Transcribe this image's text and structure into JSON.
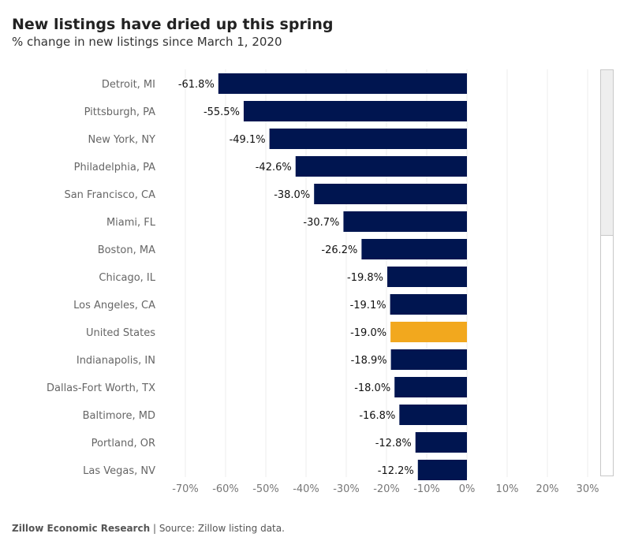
{
  "header": {
    "title": "New listings have dried up this spring",
    "subtitle": "% change in new listings since March 1, 2020"
  },
  "footer": {
    "brand": "Zillow Economic Research",
    "separator": " | ",
    "source": "Source: Zillow listing data."
  },
  "colors": {
    "bar": "#001550",
    "highlight": "#f2a81e",
    "grid": "#eeeeee"
  },
  "chart_data": {
    "type": "bar",
    "orientation": "horizontal",
    "title": "New listings have dried up this spring",
    "subtitle": "% change in new listings since March 1, 2020",
    "categories": [
      "Detroit, MI",
      "Pittsburgh, PA",
      "New York, NY",
      "Philadelphia, PA",
      "San Francisco, CA",
      "Miami, FL",
      "Boston, MA",
      "Chicago, IL",
      "Los Angeles, CA",
      "United States",
      "Indianapolis, IN",
      "Dallas-Fort Worth, TX",
      "Baltimore, MD",
      "Portland, OR",
      "Las Vegas, NV"
    ],
    "values": [
      -61.8,
      -55.5,
      -49.1,
      -42.6,
      -38.0,
      -30.7,
      -26.2,
      -19.8,
      -19.1,
      -19.0,
      -18.9,
      -18.0,
      -16.8,
      -12.8,
      -12.2
    ],
    "value_labels": [
      "-61.8%",
      "-55.5%",
      "-49.1%",
      "-42.6%",
      "-38.0%",
      "-30.7%",
      "-26.2%",
      "-19.8%",
      "-19.1%",
      "-19.0%",
      "-18.9%",
      "-18.0%",
      "-16.8%",
      "-12.8%",
      "-12.2%"
    ],
    "highlight": "United States",
    "xlim": [
      -70,
      30
    ],
    "x_ticks": [
      -70,
      -60,
      -50,
      -40,
      -30,
      -20,
      -10,
      0,
      10,
      20,
      30
    ],
    "x_tick_labels": [
      "-70%",
      "-60%",
      "-50%",
      "-40%",
      "-30%",
      "-20%",
      "-10%",
      "0%",
      "10%",
      "20%",
      "30%"
    ],
    "xlabel": "",
    "ylabel": "",
    "grid": true,
    "legend": "none"
  }
}
